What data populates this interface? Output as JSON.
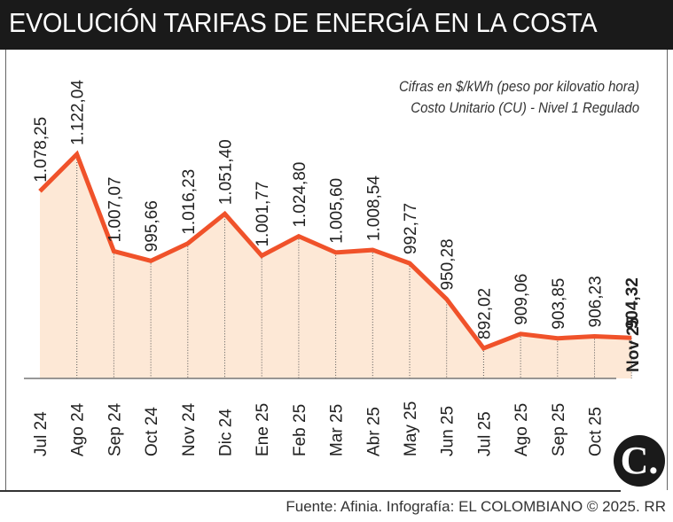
{
  "header": {
    "title": "EVOLUCIÓN TARIFAS DE ENERGÍA EN LA COSTA"
  },
  "notes": {
    "line1": "Cifras en $/kWh (peso por kilovatio hora)",
    "line2": "Costo Unitario (CU) - Nivel 1 Regulado"
  },
  "footer": {
    "source": "Fuente: Afinia. Infografía: EL COLOMBIANO © 2025. RR",
    "logo": "C."
  },
  "colors": {
    "line": "#f0522a",
    "fill": "#fde8d6",
    "title_bg": "#1a1a1a"
  },
  "chart_data": {
    "type": "area",
    "title": "EVOLUCIÓN TARIFAS DE ENERGÍA EN LA COSTA",
    "categories": [
      "Jul 24",
      "Ago 24",
      "Sep 24",
      "Oct 24",
      "Nov 24",
      "Dic 24",
      "Ene 25",
      "Feb 25",
      "Mar 25",
      "Abr 25",
      "May 25",
      "Jun 25",
      "Jul 25",
      "Ago 25",
      "Sep 25",
      "Oct 25",
      "Nov 25"
    ],
    "values": [
      1078.25,
      1122.04,
      1007.07,
      995.66,
      1016.23,
      1051.4,
      1001.77,
      1024.8,
      1005.6,
      1008.54,
      992.77,
      950.28,
      892.02,
      909.06,
      903.85,
      906.23,
      904.32
    ],
    "labels": [
      "1.078,25",
      "1.122,04",
      "1.007,07",
      "995,66",
      "1.016,23",
      "1.051,40",
      "1.001,77",
      "1.024,80",
      "1.005,60",
      "1.008,54",
      "992,77",
      "950,28",
      "892,02",
      "909,06",
      "903,85",
      "906,23",
      "904,32"
    ],
    "highlight_last": true,
    "grid": false
  }
}
